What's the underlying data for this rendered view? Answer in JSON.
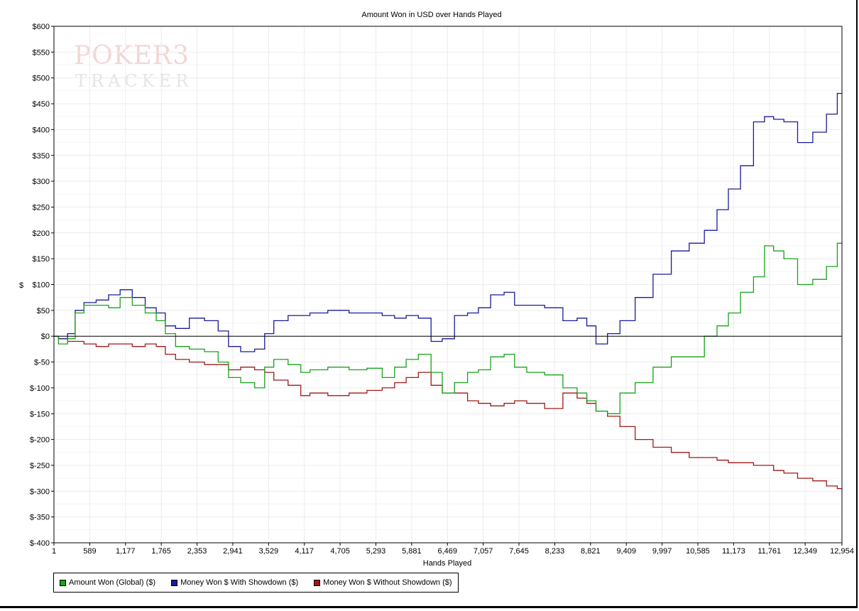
{
  "chart_data": {
    "type": "line",
    "title": "Amount Won in USD over Hands Played",
    "xlabel": "Hands Played",
    "ylabel": "$",
    "xlim": [
      1,
      12954
    ],
    "ylim": [
      -400,
      600
    ],
    "x_ticks": [
      1,
      589,
      1177,
      1765,
      2353,
      2941,
      3529,
      4117,
      4705,
      5293,
      5881,
      6469,
      7057,
      7645,
      8233,
      8821,
      9409,
      9997,
      10585,
      11173,
      11761,
      12349,
      12954
    ],
    "x_tick_labels": [
      "1",
      "589",
      "1,177",
      "1,765",
      "2,353",
      "2,941",
      "3,529",
      "4,117",
      "4,705",
      "5,293",
      "5,881",
      "6,469",
      "7,057",
      "7,645",
      "8,233",
      "8,821",
      "9,409",
      "9,997",
      "10,585",
      "11,173",
      "11,761",
      "12,349",
      "12,954"
    ],
    "y_ticks": [
      600,
      550,
      500,
      450,
      400,
      350,
      300,
      250,
      200,
      150,
      100,
      50,
      0,
      -50,
      -100,
      -150,
      -200,
      -250,
      -300,
      -350,
      -400
    ],
    "y_tick_labels": [
      "$600",
      "$550",
      "$500",
      "$450",
      "$400",
      "$350",
      "$300",
      "$250",
      "$200",
      "$150",
      "$100",
      "$50",
      "$0",
      "$-50",
      "$-100",
      "$-150",
      "$-200",
      "$-250",
      "$-300",
      "$-350",
      "$-400"
    ],
    "grid": true,
    "legend_position": "bottom-left",
    "series": [
      {
        "name": "Amount Won (Global) ($)",
        "color": "#17a31a",
        "x": [
          1,
          150,
          300,
          400,
          589,
          800,
          1000,
          1177,
          1400,
          1600,
          1765,
          1900,
          2100,
          2353,
          2600,
          2800,
          2941,
          3200,
          3400,
          3529,
          3700,
          4000,
          4117,
          4300,
          4705,
          5000,
          5293,
          5500,
          5700,
          5881,
          6100,
          6300,
          6469,
          6700,
          6900,
          7057,
          7300,
          7500,
          7645,
          7900,
          8233,
          8500,
          8700,
          8821,
          9000,
          9200,
          9409,
          9700,
          9997,
          10300,
          10585,
          10800,
          11000,
          11173,
          11400,
          11600,
          11761,
          11900,
          12100,
          12349,
          12600,
          12800,
          12954
        ],
        "y": [
          0,
          -15,
          -5,
          45,
          60,
          60,
          55,
          75,
          60,
          45,
          30,
          5,
          -20,
          -25,
          -30,
          -50,
          -80,
          -90,
          -100,
          -60,
          -45,
          -55,
          -70,
          -65,
          -60,
          -65,
          -62,
          -80,
          -60,
          -45,
          -35,
          -70,
          -110,
          -90,
          -70,
          -65,
          -40,
          -35,
          -60,
          -70,
          -75,
          -100,
          -110,
          -125,
          -145,
          -150,
          -110,
          -90,
          -60,
          -40,
          -40,
          0,
          20,
          45,
          85,
          115,
          175,
          165,
          150,
          100,
          110,
          135,
          180
        ]
      },
      {
        "name": "Money Won $ With Showdown ($)",
        "color": "#1a1a9c",
        "x": [
          1,
          150,
          300,
          400,
          589,
          800,
          1000,
          1177,
          1400,
          1600,
          1765,
          1900,
          2100,
          2353,
          2600,
          2800,
          2941,
          3200,
          3400,
          3529,
          3700,
          4000,
          4117,
          4300,
          4705,
          5000,
          5293,
          5500,
          5700,
          5881,
          6100,
          6300,
          6469,
          6700,
          6900,
          7057,
          7300,
          7500,
          7645,
          7900,
          8233,
          8500,
          8700,
          8821,
          9000,
          9200,
          9409,
          9700,
          9997,
          10300,
          10585,
          10800,
          11000,
          11173,
          11400,
          11600,
          11761,
          11900,
          12100,
          12349,
          12600,
          12800,
          12954
        ],
        "y": [
          0,
          -5,
          5,
          50,
          65,
          70,
          80,
          90,
          75,
          55,
          45,
          20,
          15,
          35,
          30,
          10,
          -20,
          -30,
          -25,
          5,
          30,
          40,
          40,
          45,
          50,
          45,
          45,
          40,
          35,
          40,
          35,
          -10,
          -5,
          40,
          45,
          55,
          80,
          85,
          60,
          60,
          55,
          30,
          35,
          20,
          -15,
          5,
          30,
          75,
          120,
          165,
          180,
          205,
          245,
          285,
          330,
          415,
          425,
          420,
          415,
          375,
          395,
          430,
          470
        ]
      },
      {
        "name": "Money Won $ Without Showdown ($)",
        "color": "#a01818",
        "x": [
          1,
          150,
          300,
          400,
          589,
          800,
          1000,
          1177,
          1400,
          1600,
          1765,
          1900,
          2100,
          2353,
          2600,
          2800,
          2941,
          3200,
          3400,
          3529,
          3700,
          4000,
          4117,
          4300,
          4705,
          5000,
          5293,
          5500,
          5700,
          5881,
          6100,
          6300,
          6469,
          6700,
          6900,
          7057,
          7300,
          7500,
          7645,
          7900,
          8233,
          8500,
          8700,
          8821,
          9000,
          9200,
          9409,
          9700,
          9997,
          10300,
          10585,
          10800,
          11000,
          11173,
          11400,
          11600,
          11761,
          11900,
          12100,
          12349,
          12600,
          12800,
          12954
        ],
        "y": [
          0,
          -5,
          -10,
          -10,
          -15,
          -20,
          -15,
          -15,
          -20,
          -15,
          -20,
          -35,
          -45,
          -50,
          -55,
          -55,
          -65,
          -60,
          -65,
          -70,
          -85,
          -95,
          -115,
          -110,
          -115,
          -110,
          -105,
          -100,
          -90,
          -80,
          -70,
          -95,
          -110,
          -110,
          -125,
          -130,
          -135,
          -130,
          -125,
          -130,
          -140,
          -110,
          -120,
          -130,
          -145,
          -155,
          -175,
          -200,
          -215,
          -225,
          -235,
          -235,
          -240,
          -245,
          -245,
          -250,
          -250,
          -260,
          -265,
          -275,
          -280,
          -290,
          -295
        ]
      }
    ]
  },
  "watermark": {
    "brand_top": "POKER3",
    "brand_bottom": "TRACKER"
  }
}
